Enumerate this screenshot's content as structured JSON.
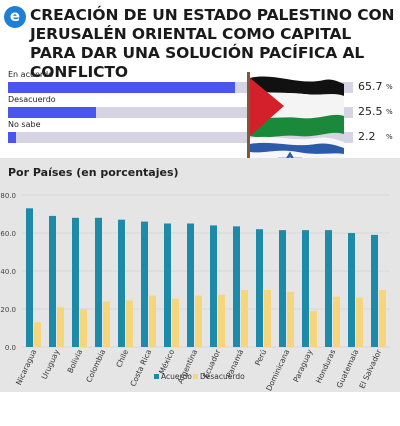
{
  "header": {
    "logo_letter": "e",
    "title": "CREACIÓN DE UN ESTADO PALESTINO CON JERUSALÉN ORIENTAL COMO CAPITAL PARA DAR UNA SOLUCIÓN PACÍFICA AL CONFLICTO"
  },
  "survey": [
    {
      "label": "En acuerdo",
      "value": 65.7,
      "value_text": "65.7",
      "unit": "%"
    },
    {
      "label": "Desacuerdo",
      "value": 25.5,
      "value_text": "25.5",
      "unit": "%"
    },
    {
      "label": "No sabe",
      "value": 2.2,
      "value_text": "2.2",
      "unit": "%"
    }
  ],
  "colors": {
    "survey_bar": "#4a55f0",
    "survey_track": "#d6d4e2",
    "acuerdo": "#1e8aaa",
    "desacuerdo": "#f6d67c",
    "chart_bg": "#e5e5e5"
  },
  "chart_data": {
    "type": "bar",
    "title": "Por Países (en porcentajes)",
    "categories": [
      "Nicaragua",
      "Uruguay",
      "Bolivia",
      "Colombia",
      "Chile",
      "Costa Rica",
      "México",
      "Argentina",
      "Ecuador",
      "Panamá",
      "Perú",
      "Dominicana",
      "Paraguay",
      "Honduras",
      "Guatemala",
      "El Salvador"
    ],
    "series": [
      {
        "name": "Acuerdo",
        "values": [
          73,
          69,
          68,
          68,
          67,
          66,
          65,
          65,
          64,
          63.5,
          62,
          61.5,
          61.5,
          61.5,
          60,
          59
        ]
      },
      {
        "name": "Desacuerdo",
        "values": [
          13,
          21,
          20,
          24,
          24.5,
          27,
          25.5,
          27,
          27.5,
          30,
          30,
          29,
          19,
          26.5,
          26,
          30
        ]
      }
    ],
    "yticks": [
      "0.0",
      "20.0",
      "40.0",
      "60.0",
      "80.0"
    ],
    "ylim": [
      0,
      80
    ],
    "grid": true,
    "legend": "bottom-center"
  }
}
